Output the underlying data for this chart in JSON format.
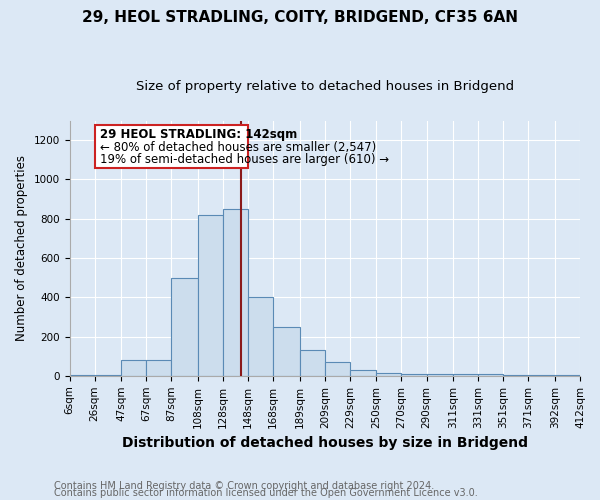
{
  "title": "29, HEOL STRADLING, COITY, BRIDGEND, CF35 6AN",
  "subtitle": "Size of property relative to detached houses in Bridgend",
  "xlabel": "Distribution of detached houses by size in Bridgend",
  "ylabel": "Number of detached properties",
  "footer_line1": "Contains HM Land Registry data © Crown copyright and database right 2024.",
  "footer_line2": "Contains public sector information licensed under the Open Government Licence v3.0.",
  "annotation_line1": "29 HEOL STRADLING: 142sqm",
  "annotation_line2": "← 80% of detached houses are smaller (2,547)",
  "annotation_line3": "19% of semi-detached houses are larger (610) →",
  "bar_edges": [
    6,
    26,
    47,
    67,
    87,
    108,
    128,
    148,
    168,
    189,
    209,
    229,
    250,
    270,
    290,
    311,
    331,
    351,
    371,
    392,
    412
  ],
  "bar_heights": [
    4,
    5,
    80,
    80,
    500,
    820,
    850,
    400,
    250,
    130,
    70,
    30,
    15,
    10,
    10,
    7,
    7,
    5,
    5,
    4
  ],
  "bar_color": "#ccdded",
  "bar_edge_color": "#5a8ab5",
  "vline_color": "#8b1a1a",
  "vline_x": 142,
  "annotation_box_edge": "#cc2222",
  "ylim": [
    0,
    1300
  ],
  "yticks": [
    0,
    200,
    400,
    600,
    800,
    1000,
    1200
  ],
  "bg_color": "#dce8f5",
  "plot_bg_color": "#dce8f5",
  "grid_color": "#ffffff",
  "title_fontsize": 11,
  "subtitle_fontsize": 9.5,
  "xlabel_fontsize": 10,
  "ylabel_fontsize": 8.5,
  "tick_fontsize": 7.5,
  "footer_fontsize": 7,
  "annotation_fontsize": 8.5
}
